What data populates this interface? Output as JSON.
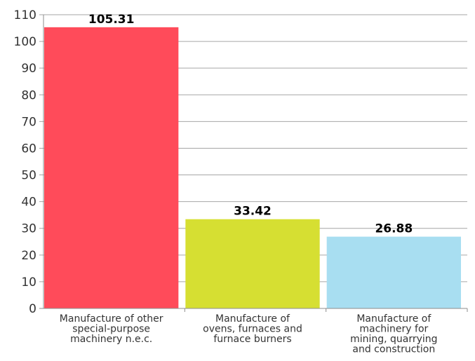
{
  "chart_data": {
    "type": "bar",
    "title": "",
    "xlabel": "",
    "ylabel": "",
    "ylim": [
      0,
      110
    ],
    "yticks": [
      0,
      10,
      20,
      30,
      40,
      50,
      60,
      70,
      80,
      90,
      100,
      110
    ],
    "grid": true,
    "categories": [
      [
        "Manufacture of other",
        "special-purpose",
        "machinery n.e.c."
      ],
      [
        "Manufacture of",
        "ovens, furnaces and",
        "furnace burners"
      ],
      [
        "Manufacture of",
        "machinery for",
        "mining, quarrying",
        "and construction"
      ]
    ],
    "values": [
      105.31,
      33.42,
      26.88
    ],
    "value_labels": [
      "105.31",
      "33.42",
      "26.88"
    ],
    "colors": [
      "#ff4b5a",
      "#d6df32",
      "#a8def1"
    ]
  }
}
